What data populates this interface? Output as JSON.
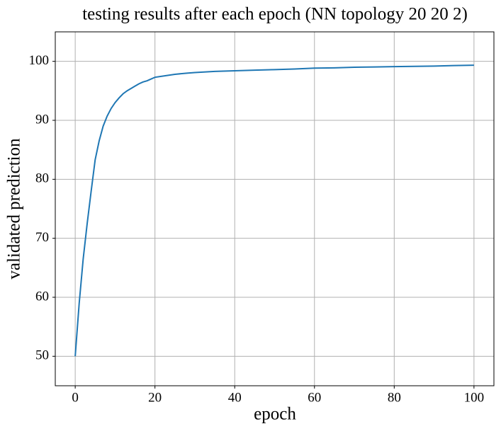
{
  "chart_data": {
    "type": "line",
    "title": "testing results after each epoch (NN topology 20 20 2)",
    "x_label": "epoch",
    "y_label": "validated prediction",
    "x": [
      0,
      1,
      2,
      3,
      4,
      5,
      6,
      7,
      8,
      9,
      10,
      11,
      12,
      13,
      14,
      15,
      16,
      17,
      18,
      19,
      20,
      22,
      25,
      28,
      30,
      35,
      40,
      45,
      50,
      55,
      60,
      65,
      70,
      75,
      80,
      85,
      90,
      95,
      100
    ],
    "series": [
      {
        "color": "#1f77b4",
        "values": [
          50,
          59,
          66.5,
          72.5,
          78,
          83.3,
          86.5,
          89,
          90.7,
          92,
          93,
          93.8,
          94.5,
          95,
          95.4,
          95.8,
          96.2,
          96.5,
          96.7,
          97,
          97.3,
          97.5,
          97.8,
          98,
          98.1,
          98.3,
          98.4,
          98.5,
          98.6,
          98.7,
          98.85,
          98.9,
          99,
          99.05,
          99.1,
          99.15,
          99.2,
          99.28,
          99.35
        ]
      }
    ],
    "xlim": [
      -5,
      105
    ],
    "ylim": [
      45,
      105
    ],
    "xticks": [
      0,
      20,
      40,
      60,
      80,
      100
    ],
    "yticks": [
      50,
      60,
      70,
      80,
      90,
      100
    ],
    "grid": true
  }
}
